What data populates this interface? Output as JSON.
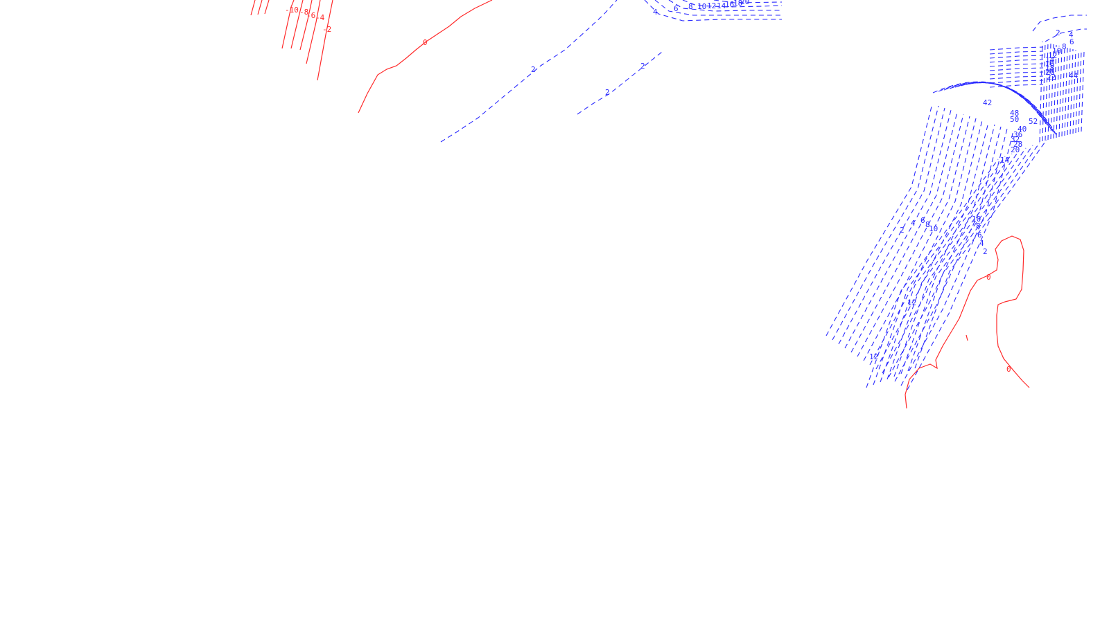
{
  "colors": {
    "negative": "#ff2a2a",
    "positive": "#2a2aff",
    "background": "#ffffff"
  },
  "line_styles": {
    "negative_and_zero": "solid",
    "positive": "dashed"
  },
  "labels": {
    "neg_top_left": [
      "-10",
      "-8",
      "-6",
      "-4",
      "-2"
    ],
    "zero_left": "0",
    "pos_mid_a": "2",
    "pos_mid_b": "2",
    "pos_mid_c": "2",
    "top_center_ramp": [
      "4",
      "6",
      "8",
      "10",
      "12",
      "14",
      "16",
      "18",
      "20"
    ],
    "upper_right": [
      "2",
      "4",
      "6",
      "8",
      "10",
      "12",
      "14",
      "16",
      "18",
      "20",
      "22",
      "24",
      "26",
      "28",
      "30",
      "32",
      "34",
      "36",
      "38",
      "40",
      "42",
      "44",
      "46"
    ],
    "inner_right": [
      "42",
      "48",
      "50",
      "52",
      "40",
      "36",
      "32",
      "28",
      "24",
      "20",
      "16",
      "14"
    ],
    "mid_right_pair": [
      "2",
      "4",
      "6",
      "8",
      "10"
    ],
    "mid_right_ramp": [
      "10",
      "8",
      "6",
      "4",
      "2"
    ],
    "lower_right": [
      "12",
      "12"
    ],
    "zero_right_a": "0",
    "zero_right_b": "0"
  }
}
